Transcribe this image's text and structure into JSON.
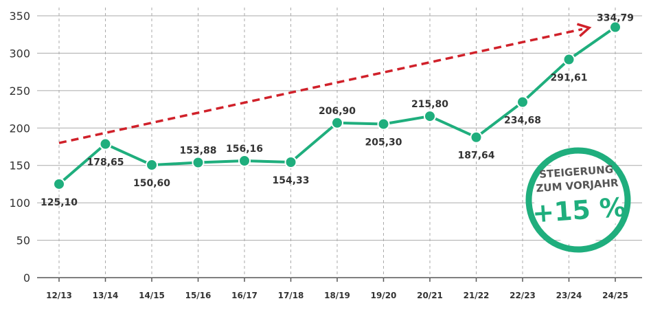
{
  "chart_data": {
    "type": "line",
    "categories": [
      "12/13",
      "13/14",
      "14/15",
      "15/16",
      "16/17",
      "17/18",
      "18/19",
      "19/20",
      "20/21",
      "21/22",
      "22/23",
      "23/24",
      "24/25"
    ],
    "values": [
      125.1,
      178.65,
      150.6,
      153.88,
      156.16,
      154.33,
      206.9,
      205.3,
      215.8,
      187.64,
      234.68,
      291.61,
      334.79
    ],
    "data_labels": [
      "125,10",
      "178,65",
      "150,60",
      "153,88",
      "156,16",
      "154,33",
      "206,90",
      "205,30",
      "215,80",
      "187,64",
      "234,68",
      "291,61",
      "334,79"
    ],
    "yticks": [
      "0",
      "50",
      "100",
      "150",
      "200",
      "250",
      "300",
      "350"
    ],
    "ylim": [
      0,
      350
    ],
    "grid": true,
    "trend_arrow": {
      "from_value": 180,
      "to_value": 334,
      "color": "#d0212a"
    },
    "colors": {
      "line": "#1fae7d",
      "marker": "#1fae7d",
      "grid": "#aaaaaa",
      "badge": "#1fae7d"
    }
  },
  "badge": {
    "line1": "STEIGERUNG",
    "line2": "ZUM VORJAHR",
    "line3": "+15 %"
  }
}
